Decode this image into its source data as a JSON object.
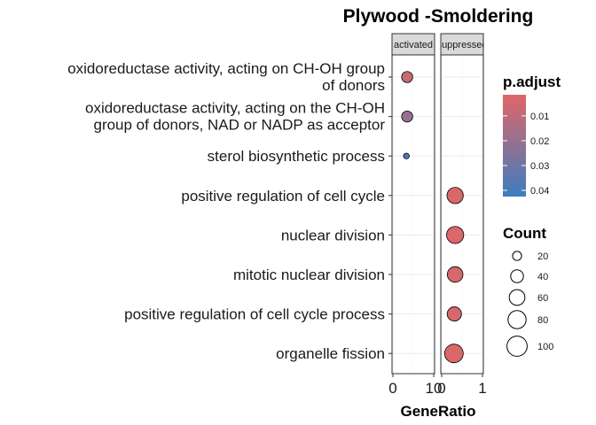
{
  "chart_data": {
    "type": "scatter",
    "title": "Plywood -Smoldering",
    "xlabel": "GeneRatio",
    "ylabel": "",
    "facets": [
      {
        "label": "activated",
        "xlim": [
          0,
          10
        ],
        "ticks": [
          0,
          10
        ],
        "tick_labels": [
          "0",
          "10"
        ]
      },
      {
        "label": "suppressed",
        "xlim": [
          0,
          1
        ],
        "ticks": [
          0,
          1
        ],
        "tick_labels": [
          "0",
          "1"
        ]
      }
    ],
    "categories": [
      "oxidoreductase activity, acting on CH-OH group\nof donors",
      "oxidoreductase activity, acting on the CH-OH\ngroup of donors, NAD or NADP as acceptor",
      "sterol biosynthetic process",
      "positive regulation of cell cycle",
      "nuclear division",
      "mitotic nuclear division",
      "positive regulation of cell cycle process",
      "organelle fission"
    ],
    "points": [
      {
        "facet": "activated",
        "term": 0,
        "x": 3.5,
        "count": 30,
        "p_adjust": 0.008
      },
      {
        "facet": "activated",
        "term": 1,
        "x": 3.5,
        "count": 30,
        "p_adjust": 0.02
      },
      {
        "facet": "activated",
        "term": 2,
        "x": 3.3,
        "count": 8,
        "p_adjust": 0.04
      },
      {
        "facet": "suppressed",
        "term": 3,
        "x": 0.33,
        "count": 65,
        "p_adjust": 0.003
      },
      {
        "facet": "suppressed",
        "term": 4,
        "x": 0.33,
        "count": 72,
        "p_adjust": 0.003
      },
      {
        "facet": "suppressed",
        "term": 5,
        "x": 0.33,
        "count": 60,
        "p_adjust": 0.004
      },
      {
        "facet": "suppressed",
        "term": 6,
        "x": 0.31,
        "count": 50,
        "p_adjust": 0.004
      },
      {
        "facet": "suppressed",
        "term": 7,
        "x": 0.3,
        "count": 85,
        "p_adjust": 0.003
      }
    ],
    "color_legend": {
      "title": "p.adjust",
      "ticks": [
        0.01,
        0.02,
        0.03,
        0.04
      ],
      "tick_labels": [
        "0.01",
        "0.02",
        "0.03",
        "0.04"
      ],
      "range": [
        0.0015,
        0.0425
      ],
      "low_color": "#E06666",
      "high_color": "#3D7DBF"
    },
    "size_legend": {
      "title": "Count",
      "values": [
        20,
        40,
        60,
        80,
        100
      ],
      "labels": [
        "20",
        "40",
        "60",
        "80",
        "100"
      ]
    },
    "grid": true,
    "legend_position": "right"
  }
}
